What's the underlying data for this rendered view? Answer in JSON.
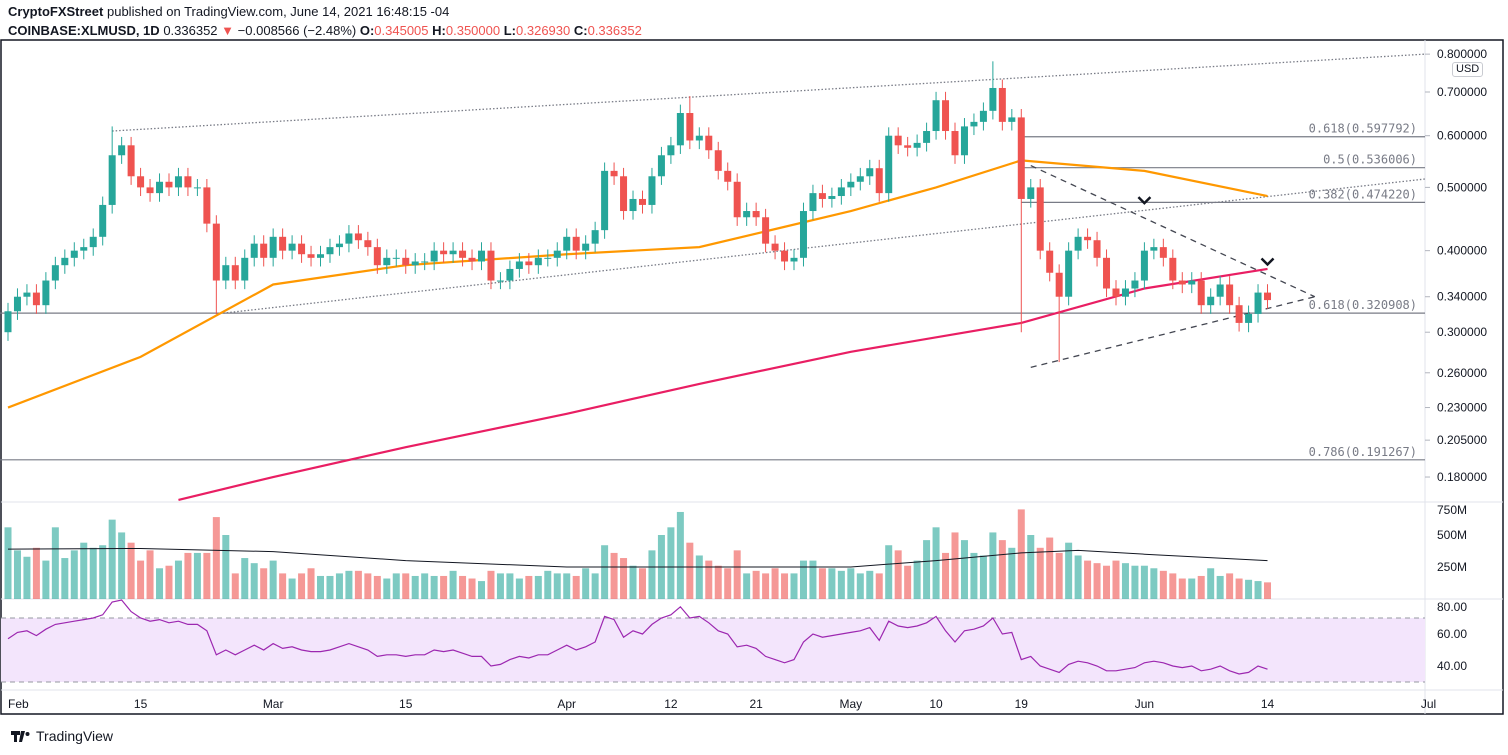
{
  "header": {
    "publisher": "CryptoFXStreet",
    "published_text": "published on TradingView.com, June 14, 2021 16:48:15 -04",
    "symbol": "COINBASE:XLMUSD, 1D",
    "last": "0.336352",
    "change": "−0.008566 (−2.48%)",
    "o_label": "O:",
    "o": "0.345005",
    "h_label": "H:",
    "h": "0.350000",
    "l_label": "L:",
    "l": "0.326930",
    "c_label": "C:",
    "c": "0.336352",
    "down_icon": "triangle-down-icon"
  },
  "currency_badge": "USD",
  "footer": {
    "brand": "TradingView"
  },
  "colors": {
    "up": "#26a69a",
    "down": "#ef5350",
    "ma50": "#ff9800",
    "ma200": "#e91e63",
    "rsi": "#9c27b0",
    "rsi_band": "#f3e5fc"
  },
  "chart_data": [
    {
      "type": "candlestick",
      "scale": "log",
      "ylim": [
        0.165,
        0.82
      ],
      "y_ticks": [
        "0.800000",
        "0.700000",
        "0.600000",
        "0.500000",
        "0.400000",
        "0.340000",
        "0.300000",
        "0.260000",
        "0.230000",
        "0.205000",
        "0.180000"
      ],
      "x_ticks": [
        "Feb",
        "15",
        "Mar",
        "15",
        "Apr",
        "12",
        "21",
        "May",
        "10",
        "19",
        "Jun",
        "14",
        "Jul"
      ],
      "close": [
        0.323,
        0.34,
        0.345,
        0.33,
        0.36,
        0.38,
        0.39,
        0.4,
        0.405,
        0.42,
        0.47,
        0.56,
        0.58,
        0.52,
        0.5,
        0.49,
        0.51,
        0.5,
        0.52,
        0.5,
        0.5,
        0.44,
        0.36,
        0.38,
        0.36,
        0.39,
        0.41,
        0.39,
        0.42,
        0.4,
        0.41,
        0.395,
        0.39,
        0.395,
        0.405,
        0.41,
        0.425,
        0.415,
        0.405,
        0.38,
        0.39,
        0.39,
        0.38,
        0.385,
        0.385,
        0.4,
        0.395,
        0.4,
        0.39,
        0.385,
        0.4,
        0.36,
        0.36,
        0.375,
        0.385,
        0.38,
        0.39,
        0.39,
        0.4,
        0.42,
        0.4,
        0.41,
        0.43,
        0.53,
        0.52,
        0.46,
        0.48,
        0.47,
        0.52,
        0.56,
        0.58,
        0.65,
        0.59,
        0.6,
        0.57,
        0.53,
        0.51,
        0.45,
        0.46,
        0.45,
        0.41,
        0.4,
        0.385,
        0.39,
        0.46,
        0.49,
        0.48,
        0.485,
        0.5,
        0.51,
        0.52,
        0.535,
        0.49,
        0.6,
        0.58,
        0.575,
        0.585,
        0.61,
        0.68,
        0.61,
        0.56,
        0.62,
        0.63,
        0.655,
        0.71,
        0.63,
        0.64,
        0.48,
        0.5,
        0.4,
        0.37,
        0.34,
        0.4,
        0.42,
        0.415,
        0.39,
        0.35,
        0.34,
        0.35,
        0.36,
        0.4,
        0.405,
        0.39,
        0.36,
        0.355,
        0.36,
        0.33,
        0.34,
        0.355,
        0.33,
        0.31,
        0.32,
        0.345,
        0.336
      ],
      "first_open": 0.3,
      "wick_extremes": [
        {
          "date": "Feb 12",
          "high": 0.62
        },
        {
          "date": "Feb 23",
          "low": 0.32
        },
        {
          "date": "Apr 14",
          "high": 0.69
        },
        {
          "date": "May 16",
          "high": 0.78
        },
        {
          "date": "May 19",
          "low": 0.3
        },
        {
          "date": "May 23",
          "low": 0.27
        },
        {
          "date": "Jun 12",
          "low": 0.3
        }
      ],
      "series": [
        {
          "kind": "sma50",
          "points": [
            [
              "Feb 1",
              0.23
            ],
            [
              "Feb 15",
              0.275
            ],
            [
              "Mar 1",
              0.355
            ],
            [
              "Mar 15",
              0.38
            ],
            [
              "Apr 1",
              0.395
            ],
            [
              "Apr 15",
              0.405
            ],
            [
              "May 1",
              0.46
            ],
            [
              "May 10",
              0.5
            ],
            [
              "May 19",
              0.55
            ],
            [
              "Jun 1",
              0.53
            ],
            [
              "Jun 14",
              0.485
            ]
          ]
        },
        {
          "kind": "sma200",
          "points": [
            [
              "Feb 19",
              0.166
            ],
            [
              "Mar 1",
              0.18
            ],
            [
              "Mar 15",
              0.2
            ],
            [
              "Apr 1",
              0.225
            ],
            [
              "Apr 15",
              0.25
            ],
            [
              "May 1",
              0.28
            ],
            [
              "May 19",
              0.31
            ],
            [
              "Jun 1",
              0.35
            ],
            [
              "Jun 14",
              0.375
            ]
          ]
        }
      ],
      "fib_levels": [
        {
          "label": "0.618(0.597792)",
          "value": 0.597792,
          "from": "May 19"
        },
        {
          "label": "0.5(0.536006)",
          "value": 0.536006,
          "from": "May 19"
        },
        {
          "label": "0.382(0.474220)",
          "value": 0.47422,
          "from": "May 19"
        },
        {
          "label": "0.618(0.320908)",
          "value": 0.320908,
          "from": "Feb 1"
        },
        {
          "label": "0.786(0.191267)",
          "value": 0.191267,
          "from": "Feb 1"
        }
      ],
      "trendlines": [
        {
          "style": "dotted",
          "from": [
            "Feb 12",
            0.61
          ],
          "to": [
            "Jul 1",
            0.8
          ]
        },
        {
          "style": "dotted",
          "from": [
            "Feb 23",
            0.32
          ],
          "to": [
            "Jul 1",
            0.515
          ]
        },
        {
          "style": "dashed",
          "from": [
            "May 20",
            0.54
          ],
          "to": [
            "Jun 19",
            0.34
          ]
        },
        {
          "style": "dashed",
          "from": [
            "May 20",
            0.265
          ],
          "to": [
            "Jun 19",
            0.34
          ]
        }
      ],
      "markers": [
        {
          "date": "Jun 1",
          "value": 0.478,
          "icon": "chevron-down-icon"
        },
        {
          "date": "Jun 14",
          "value": 0.385,
          "icon": "chevron-down-icon"
        }
      ]
    },
    {
      "type": "bar",
      "name": "volume",
      "unit": "M",
      "y_ticks": [
        "750M",
        "500M",
        "250M"
      ],
      "values": [
        560,
        380,
        330,
        400,
        300,
        560,
        320,
        380,
        440,
        400,
        420,
        620,
        520,
        440,
        300,
        380,
        240,
        260,
        300,
        360,
        360,
        360,
        640,
        500,
        200,
        320,
        280,
        240,
        300,
        200,
        160,
        200,
        240,
        180,
        180,
        200,
        220,
        220,
        200,
        180,
        160,
        200,
        200,
        180,
        200,
        180,
        180,
        220,
        180,
        160,
        140,
        220,
        200,
        200,
        160,
        180,
        180,
        220,
        200,
        200,
        180,
        240,
        200,
        420,
        360,
        320,
        260,
        240,
        380,
        500,
        560,
        680,
        440,
        340,
        300,
        260,
        240,
        380,
        200,
        220,
        200,
        240,
        200,
        200,
        300,
        300,
        240,
        240,
        220,
        240,
        200,
        220,
        200,
        420,
        380,
        260,
        300,
        460,
        560,
        360,
        520,
        460,
        360,
        340,
        520,
        460,
        400,
        700,
        500,
        400,
        480,
        360,
        440,
        340,
        300,
        280,
        260,
        300,
        280,
        260,
        260,
        240,
        220,
        200,
        160,
        160,
        180,
        240,
        180,
        200,
        160,
        150,
        140,
        130
      ],
      "ma_points": [
        [
          "Feb 1",
          390
        ],
        [
          "Feb 15",
          395
        ],
        [
          "Mar 1",
          370
        ],
        [
          "Mar 15",
          300
        ],
        [
          "Apr 1",
          250
        ],
        [
          "Apr 15",
          250
        ],
        [
          "May 1",
          250
        ],
        [
          "May 10",
          300
        ],
        [
          "May 19",
          360
        ],
        [
          "May 25",
          380
        ],
        [
          "Jun 1",
          350
        ],
        [
          "Jun 14",
          300
        ]
      ]
    },
    {
      "type": "line",
      "name": "rsi",
      "ylim": [
        25,
        82
      ],
      "band": [
        30,
        70
      ],
      "y_ticks": [
        "80.00",
        "60.00",
        "40.00"
      ],
      "values": [
        57,
        61,
        62,
        59,
        63,
        66,
        67,
        68,
        69,
        70,
        72,
        80,
        82,
        74,
        70,
        68,
        69,
        67,
        68,
        66,
        66,
        62,
        47,
        50,
        47,
        50,
        53,
        50,
        54,
        51,
        52,
        50,
        49,
        49,
        50,
        52,
        54,
        52,
        50,
        46,
        47,
        47,
        46,
        47,
        47,
        50,
        49,
        50,
        48,
        46,
        46,
        40,
        41,
        44,
        46,
        45,
        47,
        47,
        50,
        53,
        50,
        52,
        55,
        71,
        69,
        58,
        62,
        60,
        66,
        70,
        72,
        77,
        70,
        71,
        67,
        62,
        60,
        52,
        53,
        51,
        46,
        44,
        42,
        44,
        55,
        60,
        58,
        59,
        60,
        61,
        62,
        64,
        56,
        68,
        65,
        64,
        65,
        67,
        71,
        62,
        55,
        62,
        63,
        65,
        70,
        60,
        61,
        44,
        46,
        40,
        38,
        36,
        41,
        43,
        42,
        40,
        37,
        37,
        38,
        39,
        42,
        43,
        42,
        40,
        39,
        40,
        37,
        38,
        40,
        37,
        35,
        36,
        40,
        38
      ]
    }
  ]
}
